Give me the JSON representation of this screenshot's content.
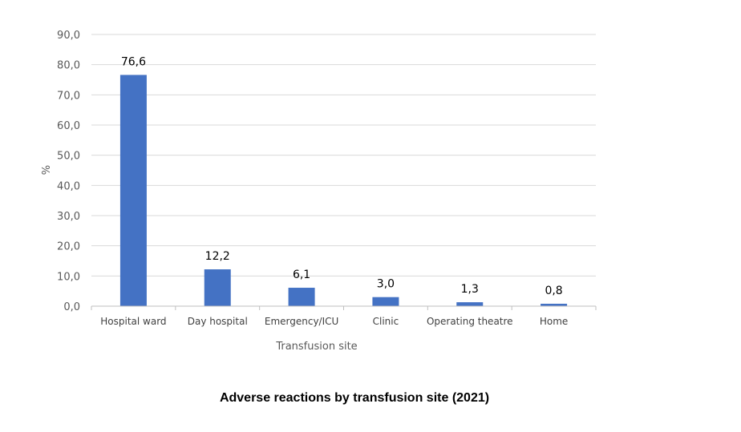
{
  "chart_data": {
    "type": "bar",
    "title": "Adverse reactions by transfusion site (2021)",
    "xlabel": "Transfusion site",
    "ylabel": "%",
    "categories": [
      "Hospital ward",
      "Day hospital",
      "Emergency/ICU",
      "Clinic",
      "Operating theatre",
      "Home"
    ],
    "values": [
      76.6,
      12.2,
      6.1,
      3.0,
      1.3,
      0.8
    ],
    "data_labels": [
      "76,6",
      "12,2",
      "6,1",
      "3,0",
      "1,3",
      "0,8"
    ],
    "yticks": [
      "0,0",
      "10,0",
      "20,0",
      "30,0",
      "40,0",
      "50,0",
      "60,0",
      "70,0",
      "80,0",
      "90,0"
    ],
    "ytick_values": [
      0,
      10,
      20,
      30,
      40,
      50,
      60,
      70,
      80,
      90
    ],
    "ylim": [
      0,
      90
    ],
    "grid": true,
    "legend": "none",
    "colors": {
      "bar": "#4472C4",
      "grid": "#D9D9D9",
      "axis": "#BFBFBF"
    }
  }
}
